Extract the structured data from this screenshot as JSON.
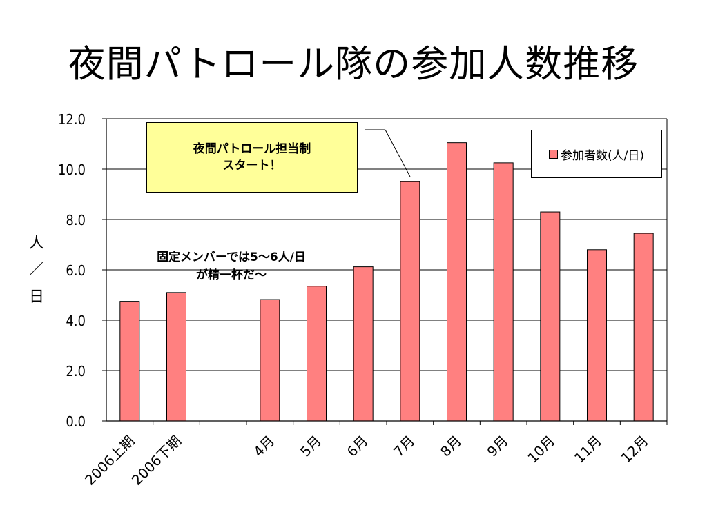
{
  "slide": {
    "title": "夜間パトロール隊の参加人数推移"
  },
  "colors": {
    "bar": "#ff8080",
    "callout_bg": "#ffff99",
    "grid": "#000000"
  },
  "annotations": {
    "callout_line1": "夜間パトロール担当制",
    "callout_line2": "スタート！",
    "note_line1": "固定メンバーでは5～6人/日",
    "note_line2": "が精一杯だ～"
  },
  "chart_data": {
    "type": "bar",
    "title": "",
    "ylabel_chars": [
      "人",
      "／",
      "日"
    ],
    "xlabel": "",
    "categories": [
      "2006上期",
      "2006下期",
      "",
      "4月",
      "5月",
      "6月",
      "7月",
      "8月",
      "9月",
      "10月",
      "11月",
      "12月"
    ],
    "series": [
      {
        "name": "参加者数(人/日)",
        "values": [
          4.75,
          5.1,
          null,
          4.82,
          5.35,
          6.12,
          9.5,
          11.05,
          10.25,
          8.3,
          6.8,
          7.45
        ]
      }
    ],
    "ylim": [
      0,
      12
    ],
    "yticks": [
      "0.0",
      "2.0",
      "4.0",
      "6.0",
      "8.0",
      "10.0",
      "12.0"
    ],
    "grid": true,
    "legend_position": "top-right"
  }
}
